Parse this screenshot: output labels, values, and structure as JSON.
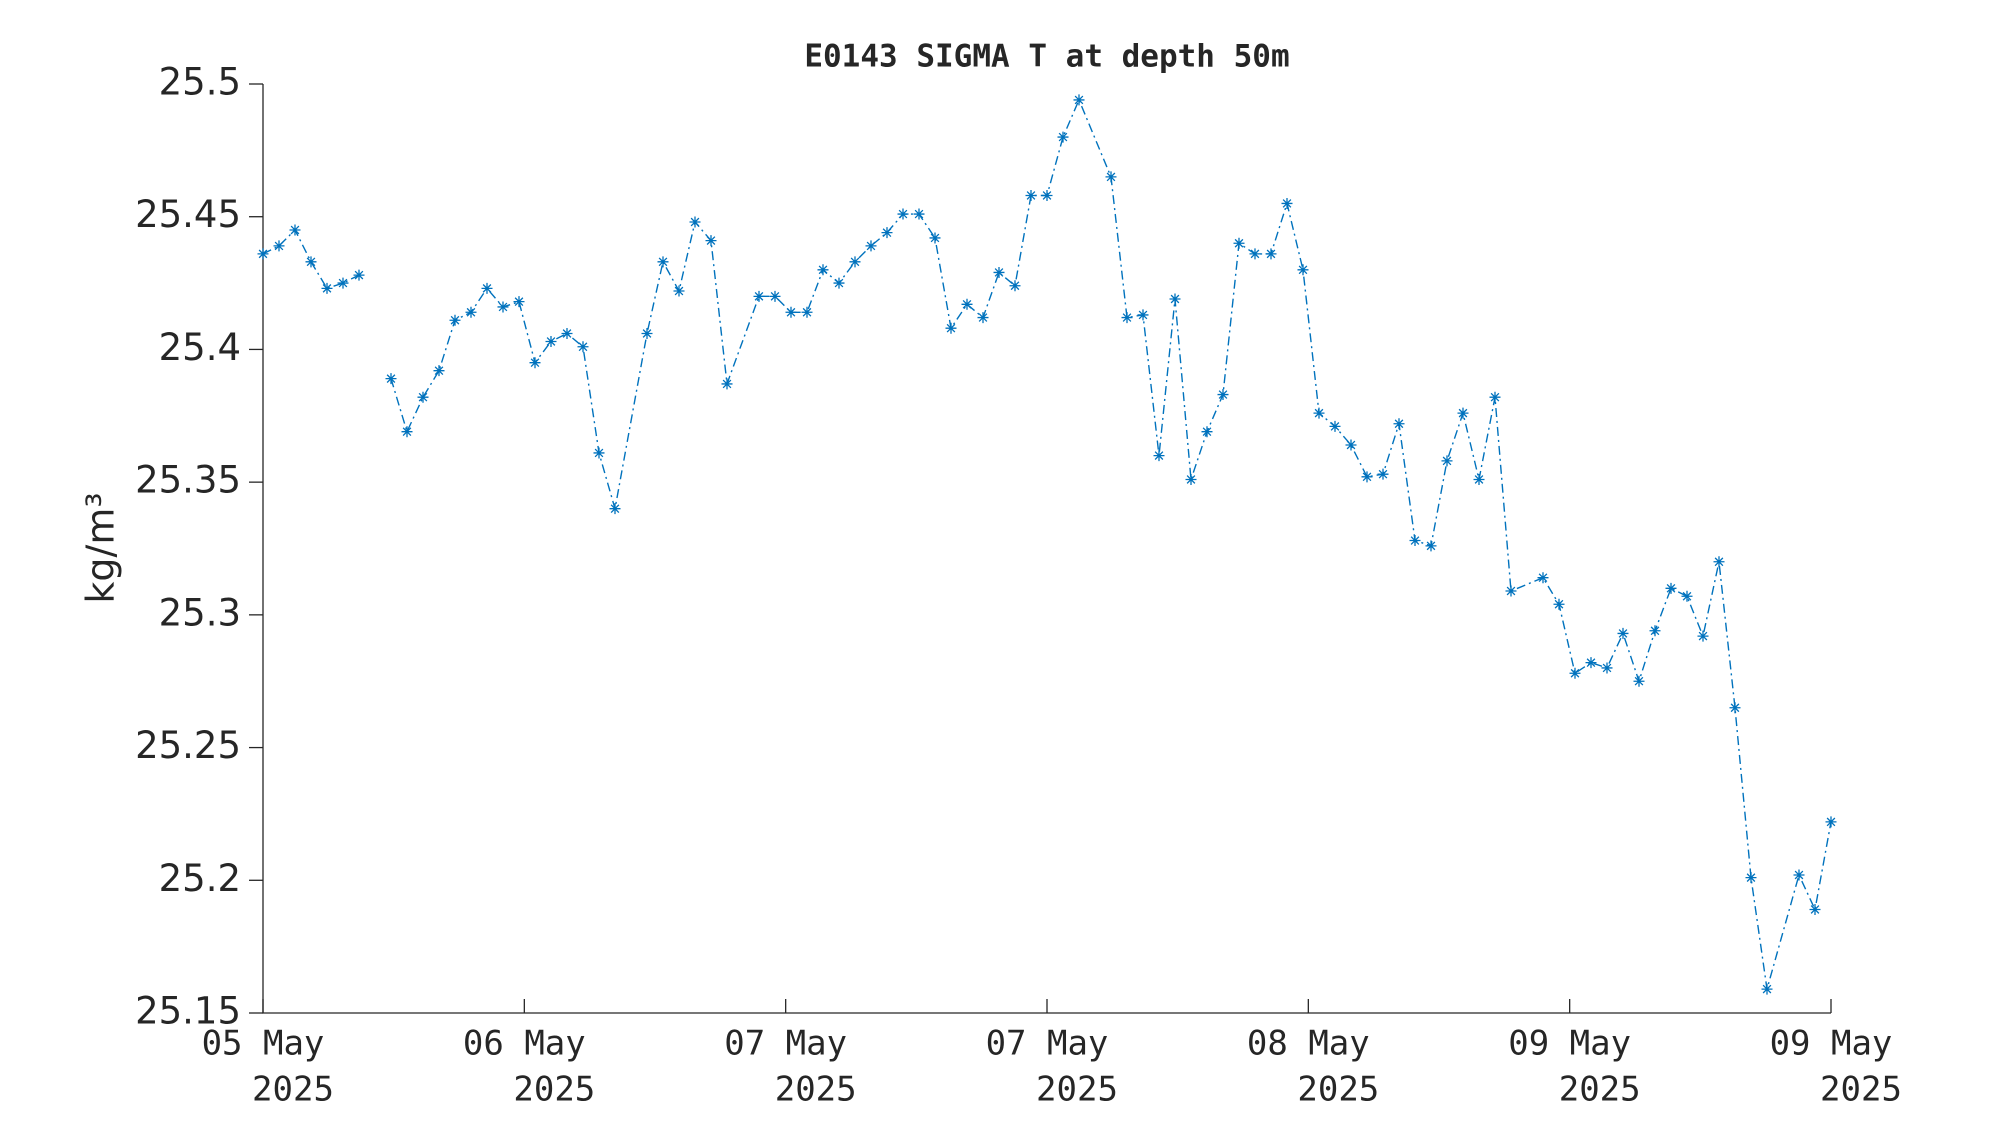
{
  "chart_data": {
    "type": "line",
    "title": "E0143 SIGMA T at depth 50m",
    "ylabel": "kg/m³",
    "x": [
      0,
      1,
      2,
      3,
      4,
      5,
      6,
      7,
      8,
      9,
      10,
      11,
      12,
      13,
      14,
      15,
      16,
      17,
      18,
      19,
      20,
      21,
      22,
      24,
      25,
      26,
      27,
      28,
      29,
      31,
      32,
      33,
      34,
      35,
      36,
      37,
      38,
      39,
      40,
      41,
      42,
      43,
      44,
      45,
      46,
      47,
      48,
      49,
      50,
      51,
      53,
      54,
      55,
      56,
      57,
      58,
      59,
      60,
      61,
      62,
      63,
      64,
      65,
      66,
      67,
      68,
      69,
      70,
      71,
      72,
      73,
      74,
      75,
      76,
      77,
      78,
      80,
      81,
      82,
      83,
      84,
      85,
      86,
      87,
      88,
      89,
      90,
      91,
      92,
      93,
      94,
      96,
      97,
      98
    ],
    "series": [
      {
        "color": "#0072bd",
        "values": [
          25.436,
          25.439,
          25.445,
          25.433,
          25.423,
          25.425,
          25.428,
          null,
          25.389,
          25.369,
          25.382,
          25.392,
          25.411,
          25.414,
          25.423,
          25.416,
          25.418,
          25.395,
          25.403,
          25.406,
          25.401,
          25.361,
          25.34,
          25.406,
          25.433,
          25.422,
          25.448,
          25.441,
          25.387,
          25.42,
          25.42,
          25.414,
          25.414,
          25.43,
          25.425,
          25.433,
          25.439,
          25.444,
          25.451,
          25.451,
          25.442,
          25.408,
          25.417,
          25.412,
          25.429,
          25.424,
          25.458,
          25.458,
          25.48,
          25.494,
          25.465,
          25.412,
          25.413,
          25.36,
          25.419,
          25.351,
          25.369,
          25.383,
          25.44,
          25.436,
          25.436,
          25.455,
          25.43,
          25.376,
          25.371,
          25.364,
          25.352,
          25.353,
          25.372,
          25.328,
          25.326,
          25.358,
          25.376,
          25.351,
          25.382,
          25.309,
          25.314,
          25.304,
          25.278,
          25.282,
          25.28,
          25.293,
          25.275,
          25.294,
          25.31,
          25.307,
          25.292,
          25.32,
          25.265,
          25.201,
          25.159,
          25.202,
          25.189,
          25.222
        ]
      }
    ],
    "xlim": [
      0,
      98
    ],
    "xticks": [
      {
        "value": 0,
        "label": [
          "05 May",
          "2025"
        ]
      },
      {
        "value": 16.333,
        "label": [
          "06 May",
          "2025"
        ]
      },
      {
        "value": 32.667,
        "label": [
          "07 May",
          "2025"
        ]
      },
      {
        "value": 49,
        "label": [
          "07 May",
          "2025"
        ]
      },
      {
        "value": 65.333,
        "label": [
          "08 May",
          "2025"
        ]
      },
      {
        "value": 81.667,
        "label": [
          "09 May",
          "2025"
        ]
      },
      {
        "value": 98,
        "label": [
          "09 May",
          "2025"
        ]
      }
    ],
    "ylim": [
      25.15,
      25.5
    ],
    "yticks": [
      25.15,
      25.2,
      25.25,
      25.3,
      25.35,
      25.4,
      25.45,
      25.5
    ]
  }
}
